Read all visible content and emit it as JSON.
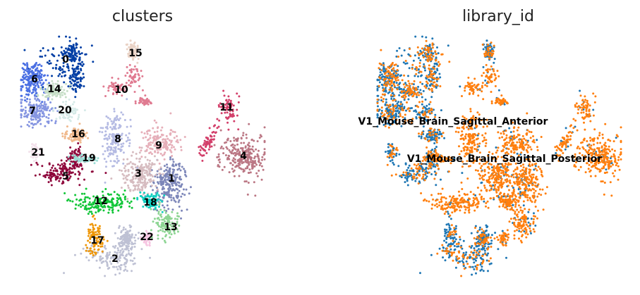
{
  "figure": {
    "panels": [
      {
        "title": "clusters",
        "chart_type": "scatter",
        "legend_location": "on data",
        "axes": "hidden",
        "groups": [
          {
            "name": "0",
            "color": "#023fa5",
            "points": 240
          },
          {
            "name": "1",
            "color": "#7d87b9",
            "points": 230
          },
          {
            "name": "2",
            "color": "#bec1d4",
            "points": 260
          },
          {
            "name": "3",
            "color": "#d6bcc0",
            "points": 210
          },
          {
            "name": "4",
            "color": "#bb7784",
            "points": 260
          },
          {
            "name": "5",
            "color": "#8e063b",
            "points": 230
          },
          {
            "name": "6",
            "color": "#4a6fe3",
            "points": 190
          },
          {
            "name": "7",
            "color": "#8595e1",
            "points": 170
          },
          {
            "name": "8",
            "color": "#b5bbe3",
            "points": 170
          },
          {
            "name": "9",
            "color": "#e6afb9",
            "points": 150
          },
          {
            "name": "10",
            "color": "#e07b91",
            "points": 140
          },
          {
            "name": "11",
            "color": "#d33f6a",
            "points": 130
          },
          {
            "name": "12",
            "color": "#11c638",
            "points": 180
          },
          {
            "name": "13",
            "color": "#8dd593",
            "points": 110
          },
          {
            "name": "14",
            "color": "#c6dec7",
            "points": 110
          },
          {
            "name": "15",
            "color": "#ead3c6",
            "points": 80
          },
          {
            "name": "16",
            "color": "#f0b98d",
            "points": 90
          },
          {
            "name": "17",
            "color": "#ef9708",
            "points": 90
          },
          {
            "name": "18",
            "color": "#0fcfc0",
            "points": 100
          },
          {
            "name": "19",
            "color": "#9cded6",
            "points": 60
          },
          {
            "name": "20",
            "color": "#d5eae7",
            "points": 70
          },
          {
            "name": "21",
            "color": "#f3e1eb",
            "points": 45
          },
          {
            "name": "22",
            "color": "#f6c4e1",
            "points": 40
          }
        ]
      },
      {
        "title": "library_id",
        "chart_type": "scatter",
        "legend_location": "on data",
        "axes": "hidden",
        "groups": [
          {
            "name": "V1_Mouse_Brain_Sagittal_Anterior",
            "color": "#1f77b4"
          },
          {
            "name": "V1_Mouse_Brain_Sagittal_Posterior",
            "color": "#ff7f0e"
          }
        ]
      }
    ]
  }
}
